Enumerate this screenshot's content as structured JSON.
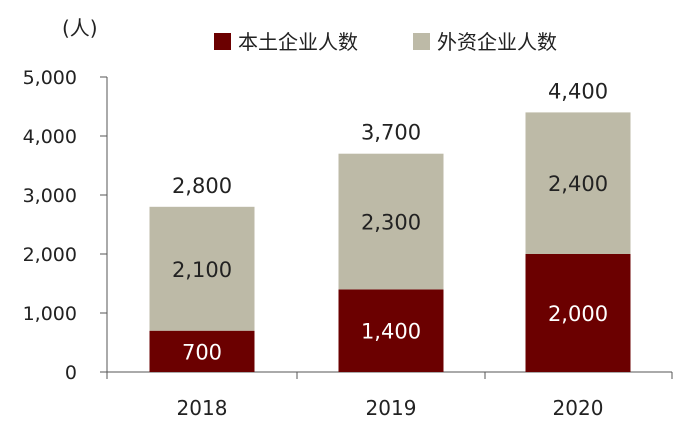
{
  "chart_data": {
    "type": "bar",
    "stacked": true,
    "ylabel": "(人)",
    "ylim": [
      0,
      5000
    ],
    "yticks": [
      0,
      1000,
      2000,
      3000,
      4000,
      5000
    ],
    "ytick_labels": [
      "0",
      "1,000",
      "2,000",
      "3,000",
      "4,000",
      "5,000"
    ],
    "categories": [
      "2018",
      "2019",
      "2020"
    ],
    "series": [
      {
        "name": "本土企业人数",
        "color": "#6b0000",
        "label_color": "#ffffff",
        "values": [
          700,
          1400,
          2000
        ],
        "labels": [
          "700",
          "1,400",
          "2,000"
        ]
      },
      {
        "name": "外资企业人数",
        "color": "#bdbaa7",
        "label_color": "#222222",
        "values": [
          2100,
          2300,
          2400
        ],
        "labels": [
          "2,100",
          "2,300",
          "2,400"
        ]
      }
    ],
    "totals": [
      2800,
      3700,
      4400
    ],
    "total_labels": [
      "2,800",
      "3,700",
      "4,400"
    ],
    "legend_position": "top",
    "grid": false
  }
}
